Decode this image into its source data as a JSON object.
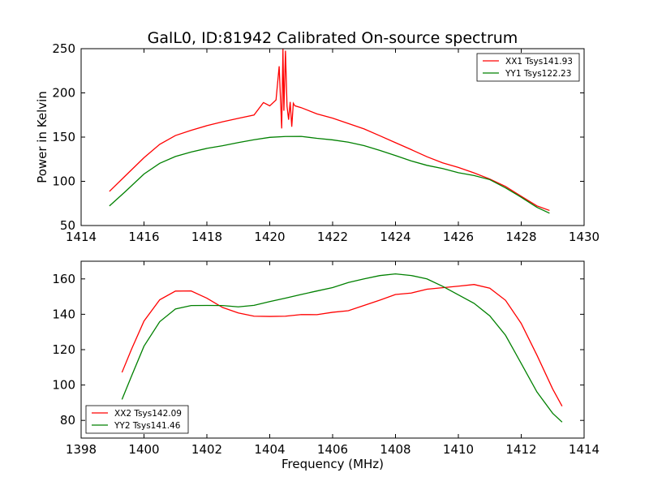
{
  "figure": {
    "title": "GalL0, ID:81942 Calibrated On-source spectrum"
  },
  "chart_data": [
    {
      "type": "line",
      "title": "GalL0, ID:81942 Calibrated On-source spectrum",
      "xlabel": "",
      "ylabel": "Power in Kelvin",
      "xlim": [
        1414,
        1430
      ],
      "ylim": [
        50,
        250
      ],
      "xticks": [
        "1414",
        "1416",
        "1418",
        "1420",
        "1422",
        "1424",
        "1426",
        "1428",
        "1430"
      ],
      "yticks": [
        "50",
        "100",
        "150",
        "200",
        "250"
      ],
      "grid": false,
      "legend_position": "top-right",
      "series": [
        {
          "name": "XX1 Tsys141.93",
          "color": "#ff0000",
          "x": [
            1414.9,
            1415.4,
            1416.0,
            1416.5,
            1417.0,
            1417.5,
            1418.0,
            1418.5,
            1419.0,
            1419.5,
            1419.8,
            1420.0,
            1420.2,
            1420.3,
            1420.38,
            1420.42,
            1420.45,
            1420.5,
            1420.55,
            1420.6,
            1420.65,
            1420.7,
            1420.75,
            1420.8,
            1421.0,
            1421.5,
            1422.0,
            1422.5,
            1423.0,
            1423.5,
            1424.0,
            1424.5,
            1425.0,
            1425.5,
            1426.0,
            1426.5,
            1427.0,
            1427.5,
            1428.0,
            1428.5,
            1428.9
          ],
          "y": [
            89,
            106,
            127,
            142,
            152,
            158,
            163,
            167,
            171,
            175,
            189,
            185,
            192,
            230,
            160,
            250,
            180,
            248,
            185,
            170,
            190,
            162,
            188,
            185,
            183,
            176,
            171,
            165,
            159,
            152,
            144,
            136,
            128,
            121,
            116,
            110,
            103,
            94,
            83,
            72,
            67
          ]
        },
        {
          "name": "YY1 Tsys122.23",
          "color": "#008000",
          "x": [
            1414.9,
            1415.4,
            1416.0,
            1416.5,
            1417.0,
            1417.5,
            1418.0,
            1418.5,
            1419.0,
            1419.5,
            1420.0,
            1420.5,
            1421.0,
            1421.5,
            1422.0,
            1422.5,
            1423.0,
            1423.5,
            1424.0,
            1424.5,
            1425.0,
            1425.5,
            1426.0,
            1426.5,
            1427.0,
            1427.5,
            1428.0,
            1428.5,
            1428.9
          ],
          "y": [
            72,
            88,
            108,
            120,
            128,
            133,
            137,
            140,
            144,
            147,
            150,
            151,
            151,
            149,
            147,
            144,
            140,
            135,
            129,
            123,
            118,
            114,
            110,
            107,
            102,
            93,
            82,
            71,
            64
          ]
        }
      ]
    },
    {
      "type": "line",
      "title": "",
      "xlabel": "Frequency (MHz)",
      "ylabel": "",
      "xlim": [
        1398,
        1414
      ],
      "ylim": [
        70,
        170
      ],
      "xticks": [
        "1398",
        "1400",
        "1402",
        "1404",
        "1406",
        "1408",
        "1410",
        "1412",
        "1414"
      ],
      "yticks": [
        "80",
        "100",
        "120",
        "140",
        "160"
      ],
      "grid": false,
      "legend_position": "bottom-left",
      "series": [
        {
          "name": "XX2 Tsys142.09",
          "color": "#ff0000",
          "x": [
            1399.3,
            1399.6,
            1400.0,
            1400.5,
            1401.0,
            1401.5,
            1402.0,
            1402.5,
            1403.0,
            1403.5,
            1404.0,
            1404.5,
            1405.0,
            1405.5,
            1406.0,
            1406.5,
            1407.0,
            1407.5,
            1408.0,
            1408.5,
            1409.0,
            1409.5,
            1410.0,
            1410.5,
            1411.0,
            1411.5,
            1412.0,
            1412.5,
            1413.0,
            1413.3
          ],
          "y": [
            107,
            120,
            136,
            148,
            153,
            153,
            149,
            144,
            141,
            139,
            139,
            139,
            140,
            140,
            141,
            142,
            145,
            148,
            151,
            152,
            154,
            155,
            156,
            157,
            155,
            148,
            135,
            117,
            98,
            88
          ]
        },
        {
          "name": "YY2 Tsys141.46",
          "color": "#008000",
          "x": [
            1399.3,
            1399.6,
            1400.0,
            1400.5,
            1401.0,
            1401.5,
            1402.0,
            1402.5,
            1403.0,
            1403.5,
            1404.0,
            1404.5,
            1405.0,
            1405.5,
            1406.0,
            1406.5,
            1407.0,
            1407.5,
            1408.0,
            1408.5,
            1409.0,
            1409.5,
            1410.0,
            1410.5,
            1411.0,
            1411.5,
            1412.0,
            1412.5,
            1413.0,
            1413.3
          ],
          "y": [
            92,
            105,
            122,
            136,
            143,
            145,
            145,
            145,
            144,
            145,
            147,
            149,
            151,
            153,
            155,
            158,
            160,
            162,
            163,
            162,
            160,
            156,
            151,
            146,
            139,
            128,
            112,
            96,
            84,
            79
          ]
        }
      ]
    }
  ]
}
